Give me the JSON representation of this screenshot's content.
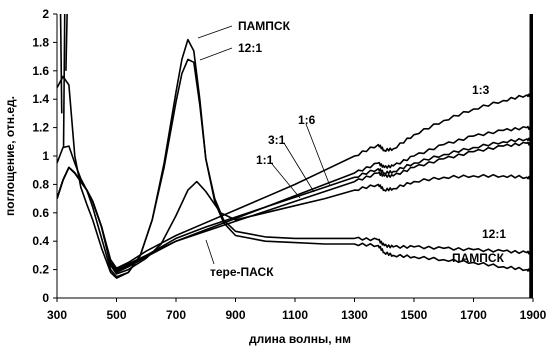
{
  "chart_data": {
    "type": "line",
    "title": "",
    "xlabel": "длина волны, нм",
    "ylabel": "поглощение, отн.ед.",
    "xlim": [
      300,
      1900
    ],
    "ylim": [
      0,
      2
    ],
    "xticks": [
      300,
      500,
      700,
      900,
      1100,
      1300,
      1500,
      1700,
      1900
    ],
    "yticks": [
      0,
      0.2,
      0.4,
      0.6,
      0.8,
      1,
      1.2,
      1.4,
      1.6,
      1.8,
      2
    ],
    "ytick_labels": [
      "0",
      "0.2",
      "0.4",
      "0.6",
      "0.8",
      "1",
      "1.2",
      "1.4",
      "1.6",
      "1.8",
      "2"
    ],
    "grid": false,
    "series": [
      {
        "name": "ПАМПСК",
        "x": [
          300,
          320,
          340,
          360,
          380,
          400,
          420,
          450,
          480,
          500,
          540,
          580,
          620,
          660,
          700,
          720,
          740,
          760,
          780,
          800,
          830,
          860,
          900,
          1000,
          1100,
          1200,
          1300,
          1380,
          1400,
          1430,
          1500,
          1600,
          1700,
          1800,
          1880,
          1900
        ],
        "y": [
          1.48,
          1.56,
          1.5,
          1.0,
          0.78,
          0.66,
          0.55,
          0.35,
          0.18,
          0.14,
          0.18,
          0.3,
          0.55,
          0.95,
          1.45,
          1.68,
          1.82,
          1.74,
          1.4,
          0.98,
          0.68,
          0.53,
          0.44,
          0.4,
          0.39,
          0.38,
          0.38,
          0.37,
          0.32,
          0.3,
          0.29,
          0.27,
          0.25,
          0.22,
          0.2,
          0.19
        ]
      },
      {
        "name": "12:1",
        "x": [
          300,
          320,
          340,
          360,
          380,
          400,
          420,
          450,
          480,
          500,
          540,
          580,
          620,
          660,
          700,
          720,
          740,
          760,
          780,
          800,
          830,
          860,
          900,
          1000,
          1100,
          1200,
          1300,
          1380,
          1400,
          1430,
          1500,
          1600,
          1700,
          1800,
          1880,
          1900
        ],
        "y": [
          0.95,
          1.06,
          1.07,
          0.95,
          0.84,
          0.76,
          0.64,
          0.42,
          0.2,
          0.15,
          0.18,
          0.3,
          0.55,
          0.92,
          1.38,
          1.58,
          1.68,
          1.66,
          1.36,
          0.98,
          0.7,
          0.55,
          0.47,
          0.43,
          0.42,
          0.42,
          0.42,
          0.41,
          0.37,
          0.36,
          0.36,
          0.35,
          0.34,
          0.33,
          0.32,
          0.32
        ]
      },
      {
        "name": "1:3",
        "x": [
          300,
          320,
          340,
          360,
          380,
          400,
          420,
          450,
          480,
          500,
          540,
          600,
          700,
          800,
          900,
          1000,
          1100,
          1200,
          1300,
          1380,
          1400,
          1430,
          1500,
          1600,
          1700,
          1800,
          1880,
          1900
        ],
        "y": [
          0.7,
          0.83,
          0.92,
          0.88,
          0.82,
          0.76,
          0.68,
          0.5,
          0.27,
          0.21,
          0.25,
          0.33,
          0.44,
          0.53,
          0.62,
          0.71,
          0.8,
          0.9,
          1.0,
          1.08,
          1.04,
          1.05,
          1.15,
          1.25,
          1.33,
          1.39,
          1.43,
          1.42
        ]
      },
      {
        "name": "1:6",
        "x": [
          300,
          320,
          340,
          360,
          380,
          400,
          420,
          450,
          480,
          500,
          540,
          600,
          700,
          800,
          900,
          1000,
          1100,
          1200,
          1300,
          1380,
          1400,
          1430,
          1500,
          1600,
          1700,
          1800,
          1880,
          1900
        ],
        "y": [
          0.7,
          0.83,
          0.92,
          0.88,
          0.82,
          0.76,
          0.68,
          0.5,
          0.25,
          0.2,
          0.24,
          0.3,
          0.4,
          0.48,
          0.56,
          0.64,
          0.72,
          0.8,
          0.88,
          0.95,
          0.92,
          0.93,
          1.0,
          1.08,
          1.14,
          1.18,
          1.2,
          1.19
        ]
      },
      {
        "name": "3:1",
        "x": [
          300,
          320,
          340,
          360,
          380,
          400,
          420,
          450,
          480,
          500,
          540,
          600,
          700,
          800,
          900,
          1000,
          1100,
          1200,
          1300,
          1380,
          1400,
          1430,
          1500,
          1600,
          1700,
          1800,
          1880,
          1900
        ],
        "y": [
          0.7,
          0.83,
          0.92,
          0.88,
          0.82,
          0.76,
          0.68,
          0.5,
          0.24,
          0.19,
          0.23,
          0.3,
          0.42,
          0.5,
          0.57,
          0.64,
          0.71,
          0.78,
          0.85,
          0.91,
          0.88,
          0.89,
          0.95,
          1.01,
          1.06,
          1.1,
          1.12,
          1.11
        ]
      },
      {
        "name": "1:1",
        "x": [
          300,
          320,
          340,
          360,
          380,
          400,
          420,
          450,
          480,
          500,
          540,
          600,
          700,
          800,
          900,
          1000,
          1100,
          1200,
          1300,
          1380,
          1400,
          1430,
          1500,
          1600,
          1700,
          1800,
          1880,
          1900
        ],
        "y": [
          0.7,
          0.83,
          0.92,
          0.88,
          0.82,
          0.76,
          0.68,
          0.5,
          0.24,
          0.18,
          0.22,
          0.29,
          0.4,
          0.47,
          0.54,
          0.61,
          0.68,
          0.75,
          0.82,
          0.88,
          0.86,
          0.86,
          0.92,
          0.98,
          1.03,
          1.07,
          1.09,
          1.08
        ]
      },
      {
        "name": "тере-ПАСК",
        "x": [
          300,
          320,
          340,
          360,
          380,
          400,
          420,
          450,
          480,
          500,
          540,
          600,
          650,
          700,
          740,
          770,
          800,
          850,
          900,
          1000,
          1100,
          1200,
          1300,
          1380,
          1400,
          1430,
          1500,
          1600,
          1700,
          1800,
          1880,
          1900
        ],
        "y": [
          0.7,
          0.83,
          0.92,
          0.88,
          0.82,
          0.76,
          0.68,
          0.5,
          0.23,
          0.17,
          0.2,
          0.28,
          0.38,
          0.58,
          0.76,
          0.82,
          0.75,
          0.6,
          0.55,
          0.6,
          0.65,
          0.7,
          0.76,
          0.8,
          0.76,
          0.77,
          0.82,
          0.85,
          0.86,
          0.86,
          0.85,
          0.84
        ]
      }
    ],
    "annotations": [
      "ПАМПСК",
      "12:1",
      "1:3",
      "1:6",
      "3:1",
      "1:1",
      "12:1",
      "ПАМПСК",
      "тере-ПАСК"
    ]
  }
}
